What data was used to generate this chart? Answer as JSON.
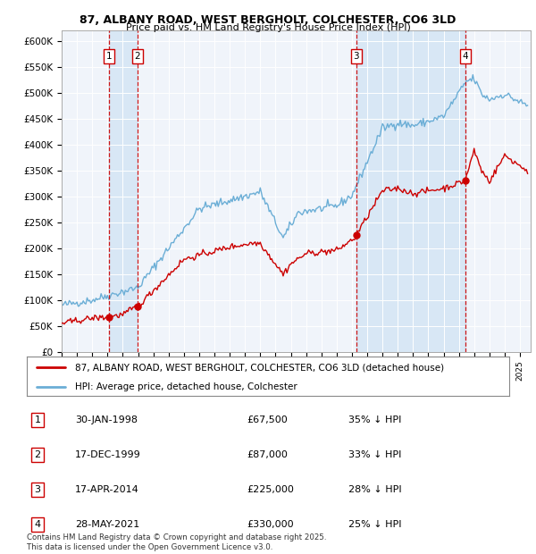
{
  "title_line1": "87, ALBANY ROAD, WEST BERGHOLT, COLCHESTER, CO6 3LD",
  "title_line2": "Price paid vs. HM Land Registry's House Price Index (HPI)",
  "xlim_start": 1995.0,
  "xlim_end": 2025.7,
  "ylim_min": 0,
  "ylim_max": 620000,
  "yticks": [
    0,
    50000,
    100000,
    150000,
    200000,
    250000,
    300000,
    350000,
    400000,
    450000,
    500000,
    550000,
    600000
  ],
  "ytick_labels": [
    "£0",
    "£50K",
    "£100K",
    "£150K",
    "£200K",
    "£250K",
    "£300K",
    "£350K",
    "£400K",
    "£450K",
    "£500K",
    "£550K",
    "£600K"
  ],
  "hpi_color": "#6baed6",
  "price_color": "#cc0000",
  "vline_color": "#cc0000",
  "sale_points": [
    {
      "date_num": 1998.08,
      "price": 67500,
      "label": "1"
    },
    {
      "date_num": 1999.96,
      "price": 87000,
      "label": "2"
    },
    {
      "date_num": 2014.29,
      "price": 225000,
      "label": "3"
    },
    {
      "date_num": 2021.41,
      "price": 330000,
      "label": "4"
    }
  ],
  "table_rows": [
    {
      "num": "1",
      "date": "30-JAN-1998",
      "price": "£67,500",
      "hpi": "35% ↓ HPI"
    },
    {
      "num": "2",
      "date": "17-DEC-1999",
      "price": "£87,000",
      "hpi": "33% ↓ HPI"
    },
    {
      "num": "3",
      "date": "17-APR-2014",
      "price": "£225,000",
      "hpi": "28% ↓ HPI"
    },
    {
      "num": "4",
      "date": "28-MAY-2021",
      "price": "£330,000",
      "hpi": "25% ↓ HPI"
    }
  ],
  "legend_property_label": "87, ALBANY ROAD, WEST BERGHOLT, COLCHESTER, CO6 3LD (detached house)",
  "legend_hpi_label": "HPI: Average price, detached house, Colchester",
  "footer": "Contains HM Land Registry data © Crown copyright and database right 2025.\nThis data is licensed under the Open Government Licence v3.0.",
  "shade_color": "#cfe2f3",
  "grid_color": "#cccccc",
  "chart_bg": "#f0f4fa"
}
